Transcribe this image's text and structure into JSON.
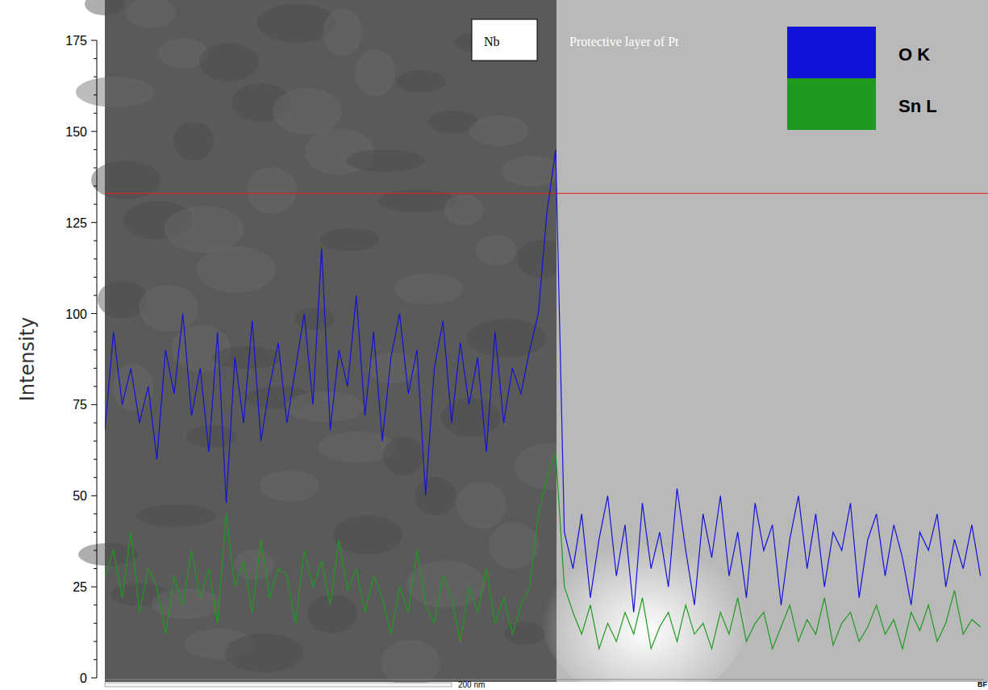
{
  "chart_data": {
    "type": "line",
    "y_label": "Intensity",
    "annotations": [
      "Nb",
      "Protective layer of Pt",
      "BF"
    ],
    "scale_bar": {
      "value": 200,
      "label": "200 nm"
    },
    "reference_line": 133,
    "x": [
      0,
      5,
      10,
      15,
      20,
      25,
      30,
      35,
      40,
      45,
      50,
      55,
      60,
      65,
      70,
      75,
      80,
      85,
      90,
      95,
      100,
      105,
      110,
      115,
      120,
      125,
      130,
      135,
      140,
      145,
      150,
      155,
      160,
      165,
      170,
      175,
      180,
      185,
      190,
      195,
      200,
      205,
      210,
      215,
      220,
      225,
      230,
      235,
      240,
      245,
      250,
      255,
      260,
      265,
      270,
      275,
      280,
      285,
      290,
      295,
      300,
      305,
      310,
      315,
      320,
      325,
      330,
      335,
      340,
      345,
      350,
      355,
      360,
      365,
      370,
      375,
      380,
      385,
      390,
      395,
      400,
      405,
      410,
      415,
      420,
      425,
      430,
      435,
      440,
      445,
      450,
      455,
      460,
      465,
      470,
      475,
      480,
      485,
      490,
      495,
      500,
      505
    ],
    "xlim": [
      0,
      507
    ],
    "ylim": [
      0,
      175
    ],
    "yticks": [
      0,
      25,
      50,
      75,
      100,
      125,
      150,
      175
    ],
    "tick_labels": "y",
    "grid": false,
    "legend": "top-right",
    "series": [
      {
        "name": "O K",
        "color": "#1212d8",
        "values": [
          68,
          95,
          75,
          85,
          70,
          80,
          60,
          90,
          78,
          100,
          72,
          85,
          62,
          95,
          48,
          88,
          70,
          98,
          65,
          80,
          92,
          70,
          85,
          100,
          75,
          118,
          68,
          90,
          80,
          105,
          72,
          95,
          65,
          88,
          100,
          78,
          90,
          50,
          85,
          98,
          70,
          92,
          75,
          88,
          62,
          95,
          70,
          85,
          78,
          90,
          100,
          128,
          145,
          40,
          30,
          45,
          22,
          38,
          50,
          28,
          42,
          18,
          48,
          30,
          40,
          25,
          52,
          35,
          20,
          45,
          33,
          50,
          28,
          40,
          22,
          48,
          35,
          42,
          20,
          38,
          50,
          30,
          45,
          25,
          40,
          35,
          48,
          22,
          38,
          45,
          28,
          42,
          33,
          20,
          40,
          35,
          45,
          25,
          38,
          30,
          42,
          28
        ]
      },
      {
        "name": "Sn L",
        "color": "#1f9a1f",
        "values": [
          28,
          35,
          22,
          40,
          18,
          30,
          25,
          12,
          28,
          20,
          35,
          22,
          30,
          15,
          45,
          25,
          32,
          18,
          38,
          22,
          30,
          28,
          15,
          35,
          25,
          32,
          20,
          38,
          24,
          30,
          18,
          28,
          22,
          12,
          25,
          18,
          35,
          20,
          15,
          28,
          22,
          10,
          25,
          18,
          30,
          15,
          22,
          12,
          20,
          25,
          45,
          55,
          62,
          25,
          18,
          12,
          20,
          8,
          15,
          10,
          18,
          12,
          22,
          8,
          14,
          18,
          10,
          20,
          12,
          15,
          8,
          18,
          12,
          22,
          10,
          15,
          18,
          8,
          14,
          20,
          10,
          16,
          12,
          22,
          9,
          15,
          18,
          10,
          14,
          20,
          12,
          16,
          8,
          18,
          13,
          20,
          10,
          15,
          24,
          12,
          16,
          14
        ]
      }
    ]
  }
}
